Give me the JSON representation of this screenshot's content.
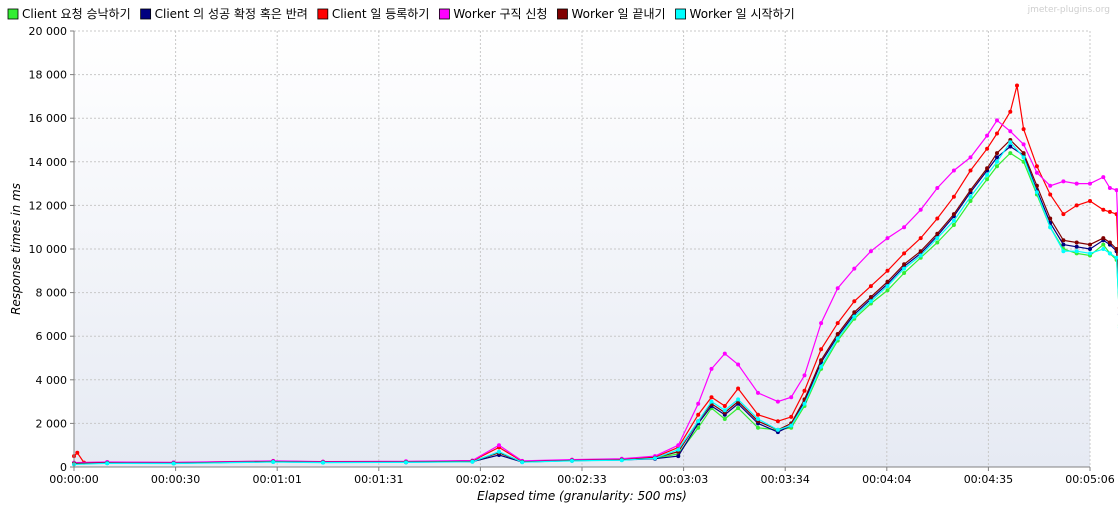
{
  "watermark": "jmeter-plugins.org",
  "chart_data": {
    "type": "line",
    "xlabel": "Elapsed time (granularity: 500 ms)",
    "ylabel": "Response times in ms",
    "ylim": [
      0,
      20000
    ],
    "xlim_seconds": [
      0,
      306
    ],
    "y_ticks": [
      0,
      2000,
      4000,
      6000,
      8000,
      10000,
      12000,
      14000,
      16000,
      18000,
      20000
    ],
    "y_tick_labels": [
      "0",
      "2 000",
      "4 000",
      "6 000",
      "8 000",
      "10 000",
      "12 000",
      "14 000",
      "16 000",
      "18 000",
      "20 000"
    ],
    "x_tick_labels": [
      "00:00:00",
      "00:00:30",
      "00:01:01",
      "00:01:31",
      "00:02:02",
      "00:02:33",
      "00:03:03",
      "00:03:34",
      "00:04:04",
      "00:04:35",
      "00:05:06"
    ],
    "grid": true,
    "legend_position": "top",
    "series": [
      {
        "name": "Client 요청 승낙하기",
        "color": "#33ee33",
        "points": [
          [
            0,
            150
          ],
          [
            10,
            200
          ],
          [
            30,
            180
          ],
          [
            60,
            250
          ],
          [
            75,
            220
          ],
          [
            100,
            230
          ],
          [
            120,
            260
          ],
          [
            128,
            650
          ],
          [
            135,
            240
          ],
          [
            150,
            300
          ],
          [
            165,
            330
          ],
          [
            175,
            400
          ],
          [
            182,
            600
          ],
          [
            188,
            1800
          ],
          [
            192,
            2700
          ],
          [
            196,
            2200
          ],
          [
            200,
            2700
          ],
          [
            206,
            1800
          ],
          [
            212,
            1700
          ],
          [
            216,
            1800
          ],
          [
            220,
            2800
          ],
          [
            225,
            4500
          ],
          [
            230,
            5800
          ],
          [
            235,
            6800
          ],
          [
            240,
            7500
          ],
          [
            245,
            8100
          ],
          [
            250,
            8900
          ],
          [
            255,
            9600
          ],
          [
            260,
            10300
          ],
          [
            265,
            11100
          ],
          [
            270,
            12200
          ],
          [
            275,
            13200
          ],
          [
            278,
            13800
          ],
          [
            282,
            14400
          ],
          [
            286,
            14000
          ],
          [
            290,
            12500
          ],
          [
            294,
            11000
          ],
          [
            298,
            10000
          ],
          [
            302,
            9800
          ],
          [
            306,
            9700
          ],
          [
            310,
            10200
          ],
          [
            312,
            9800
          ],
          [
            314,
            9500
          ],
          [
            315,
            6500
          ],
          [
            316,
            6800
          ]
        ]
      },
      {
        "name": "Client 의 성공 확정 혹은 반려",
        "color": "#000080",
        "points": [
          [
            0,
            150
          ],
          [
            10,
            180
          ],
          [
            30,
            170
          ],
          [
            60,
            240
          ],
          [
            75,
            210
          ],
          [
            100,
            220
          ],
          [
            120,
            250
          ],
          [
            128,
            550
          ],
          [
            135,
            230
          ],
          [
            150,
            290
          ],
          [
            165,
            320
          ],
          [
            175,
            380
          ],
          [
            182,
            500
          ],
          [
            188,
            2000
          ],
          [
            192,
            2800
          ],
          [
            196,
            2400
          ],
          [
            200,
            2900
          ],
          [
            206,
            2000
          ],
          [
            212,
            1600
          ],
          [
            216,
            1900
          ],
          [
            220,
            3000
          ],
          [
            225,
            4800
          ],
          [
            230,
            6000
          ],
          [
            235,
            7000
          ],
          [
            240,
            7700
          ],
          [
            245,
            8400
          ],
          [
            250,
            9200
          ],
          [
            255,
            9800
          ],
          [
            260,
            10600
          ],
          [
            265,
            11500
          ],
          [
            270,
            12600
          ],
          [
            275,
            13600
          ],
          [
            278,
            14200
          ],
          [
            282,
            14700
          ],
          [
            286,
            14300
          ],
          [
            290,
            12700
          ],
          [
            294,
            11200
          ],
          [
            298,
            10200
          ],
          [
            302,
            10100
          ],
          [
            306,
            10000
          ],
          [
            310,
            10400
          ],
          [
            312,
            10200
          ],
          [
            314,
            9900
          ],
          [
            315,
            7000
          ],
          [
            316,
            7100
          ]
        ]
      },
      {
        "name": "Client 일 등록하기",
        "color": "#ff0000",
        "points": [
          [
            0,
            500
          ],
          [
            1,
            650
          ],
          [
            3,
            200
          ],
          [
            10,
            220
          ],
          [
            30,
            200
          ],
          [
            60,
            270
          ],
          [
            75,
            240
          ],
          [
            100,
            250
          ],
          [
            120,
            280
          ],
          [
            128,
            900
          ],
          [
            135,
            260
          ],
          [
            150,
            320
          ],
          [
            165,
            350
          ],
          [
            175,
            450
          ],
          [
            182,
            900
          ],
          [
            188,
            2400
          ],
          [
            192,
            3200
          ],
          [
            196,
            2800
          ],
          [
            200,
            3600
          ],
          [
            206,
            2400
          ],
          [
            212,
            2100
          ],
          [
            216,
            2300
          ],
          [
            220,
            3500
          ],
          [
            225,
            5400
          ],
          [
            230,
            6600
          ],
          [
            235,
            7600
          ],
          [
            240,
            8300
          ],
          [
            245,
            9000
          ],
          [
            250,
            9800
          ],
          [
            255,
            10500
          ],
          [
            260,
            11400
          ],
          [
            265,
            12400
          ],
          [
            270,
            13600
          ],
          [
            275,
            14600
          ],
          [
            278,
            15300
          ],
          [
            282,
            16300
          ],
          [
            284,
            17500
          ],
          [
            286,
            15500
          ],
          [
            290,
            13800
          ],
          [
            294,
            12500
          ],
          [
            298,
            11600
          ],
          [
            302,
            12000
          ],
          [
            306,
            12200
          ],
          [
            310,
            11800
          ],
          [
            312,
            11700
          ],
          [
            314,
            11600
          ],
          [
            315,
            8000
          ],
          [
            316,
            8200
          ],
          [
            318,
            250
          ]
        ]
      },
      {
        "name": "Worker 구직 신청",
        "color": "#ff00ff",
        "points": [
          [
            0,
            200
          ],
          [
            10,
            230
          ],
          [
            30,
            210
          ],
          [
            60,
            280
          ],
          [
            75,
            250
          ],
          [
            100,
            260
          ],
          [
            120,
            300
          ],
          [
            128,
            1000
          ],
          [
            135,
            280
          ],
          [
            150,
            340
          ],
          [
            165,
            380
          ],
          [
            175,
            500
          ],
          [
            182,
            1000
          ],
          [
            188,
            2900
          ],
          [
            192,
            4500
          ],
          [
            196,
            5200
          ],
          [
            200,
            4700
          ],
          [
            206,
            3400
          ],
          [
            212,
            3000
          ],
          [
            216,
            3200
          ],
          [
            220,
            4200
          ],
          [
            225,
            6600
          ],
          [
            230,
            8200
          ],
          [
            235,
            9100
          ],
          [
            240,
            9900
          ],
          [
            245,
            10500
          ],
          [
            250,
            11000
          ],
          [
            255,
            11800
          ],
          [
            260,
            12800
          ],
          [
            265,
            13600
          ],
          [
            270,
            14200
          ],
          [
            275,
            15200
          ],
          [
            278,
            15900
          ],
          [
            282,
            15400
          ],
          [
            286,
            14800
          ],
          [
            290,
            13500
          ],
          [
            294,
            12900
          ],
          [
            298,
            13100
          ],
          [
            302,
            13000
          ],
          [
            306,
            13000
          ],
          [
            310,
            13300
          ],
          [
            312,
            12800
          ],
          [
            314,
            12700
          ],
          [
            315,
            8700
          ],
          [
            316,
            7300
          ],
          [
            318,
            1000
          ]
        ]
      },
      {
        "name": "Worker 일 끝내기",
        "color": "#800000",
        "points": [
          [
            0,
            160
          ],
          [
            10,
            190
          ],
          [
            30,
            180
          ],
          [
            60,
            250
          ],
          [
            75,
            220
          ],
          [
            100,
            230
          ],
          [
            120,
            260
          ],
          [
            128,
            650
          ],
          [
            135,
            240
          ],
          [
            150,
            300
          ],
          [
            165,
            330
          ],
          [
            175,
            420
          ],
          [
            182,
            700
          ],
          [
            188,
            2100
          ],
          [
            192,
            2900
          ],
          [
            196,
            2500
          ],
          [
            200,
            3000
          ],
          [
            206,
            2100
          ],
          [
            212,
            1700
          ],
          [
            216,
            2000
          ],
          [
            220,
            3100
          ],
          [
            225,
            4900
          ],
          [
            230,
            6100
          ],
          [
            235,
            7100
          ],
          [
            240,
            7800
          ],
          [
            245,
            8500
          ],
          [
            250,
            9300
          ],
          [
            255,
            9900
          ],
          [
            260,
            10700
          ],
          [
            265,
            11600
          ],
          [
            270,
            12700
          ],
          [
            275,
            13700
          ],
          [
            278,
            14400
          ],
          [
            282,
            15000
          ],
          [
            286,
            14400
          ],
          [
            290,
            12900
          ],
          [
            294,
            11400
          ],
          [
            298,
            10400
          ],
          [
            302,
            10300
          ],
          [
            306,
            10200
          ],
          [
            310,
            10500
          ],
          [
            312,
            10300
          ],
          [
            314,
            10000
          ],
          [
            315,
            7300
          ],
          [
            316,
            7300
          ]
        ]
      },
      {
        "name": "Worker 일 시작하기",
        "color": "#00ffff",
        "points": [
          [
            0,
            120
          ],
          [
            10,
            170
          ],
          [
            30,
            160
          ],
          [
            60,
            230
          ],
          [
            75,
            200
          ],
          [
            100,
            210
          ],
          [
            120,
            240
          ],
          [
            128,
            700
          ],
          [
            135,
            220
          ],
          [
            150,
            280
          ],
          [
            165,
            310
          ],
          [
            175,
            400
          ],
          [
            182,
            800
          ],
          [
            188,
            2100
          ],
          [
            192,
            3000
          ],
          [
            196,
            2600
          ],
          [
            200,
            3100
          ],
          [
            206,
            2200
          ],
          [
            212,
            1700
          ],
          [
            216,
            1900
          ],
          [
            220,
            2900
          ],
          [
            225,
            4600
          ],
          [
            230,
            5900
          ],
          [
            235,
            6900
          ],
          [
            240,
            7600
          ],
          [
            245,
            8300
          ],
          [
            250,
            9100
          ],
          [
            255,
            9700
          ],
          [
            260,
            10500
          ],
          [
            265,
            11300
          ],
          [
            270,
            12400
          ],
          [
            275,
            13400
          ],
          [
            278,
            14000
          ],
          [
            282,
            14900
          ],
          [
            286,
            14200
          ],
          [
            290,
            12600
          ],
          [
            294,
            11000
          ],
          [
            298,
            9900
          ],
          [
            302,
            9900
          ],
          [
            306,
            9800
          ],
          [
            310,
            10000
          ],
          [
            312,
            9800
          ],
          [
            314,
            9600
          ],
          [
            315,
            6400
          ],
          [
            316,
            6600
          ]
        ]
      }
    ]
  }
}
